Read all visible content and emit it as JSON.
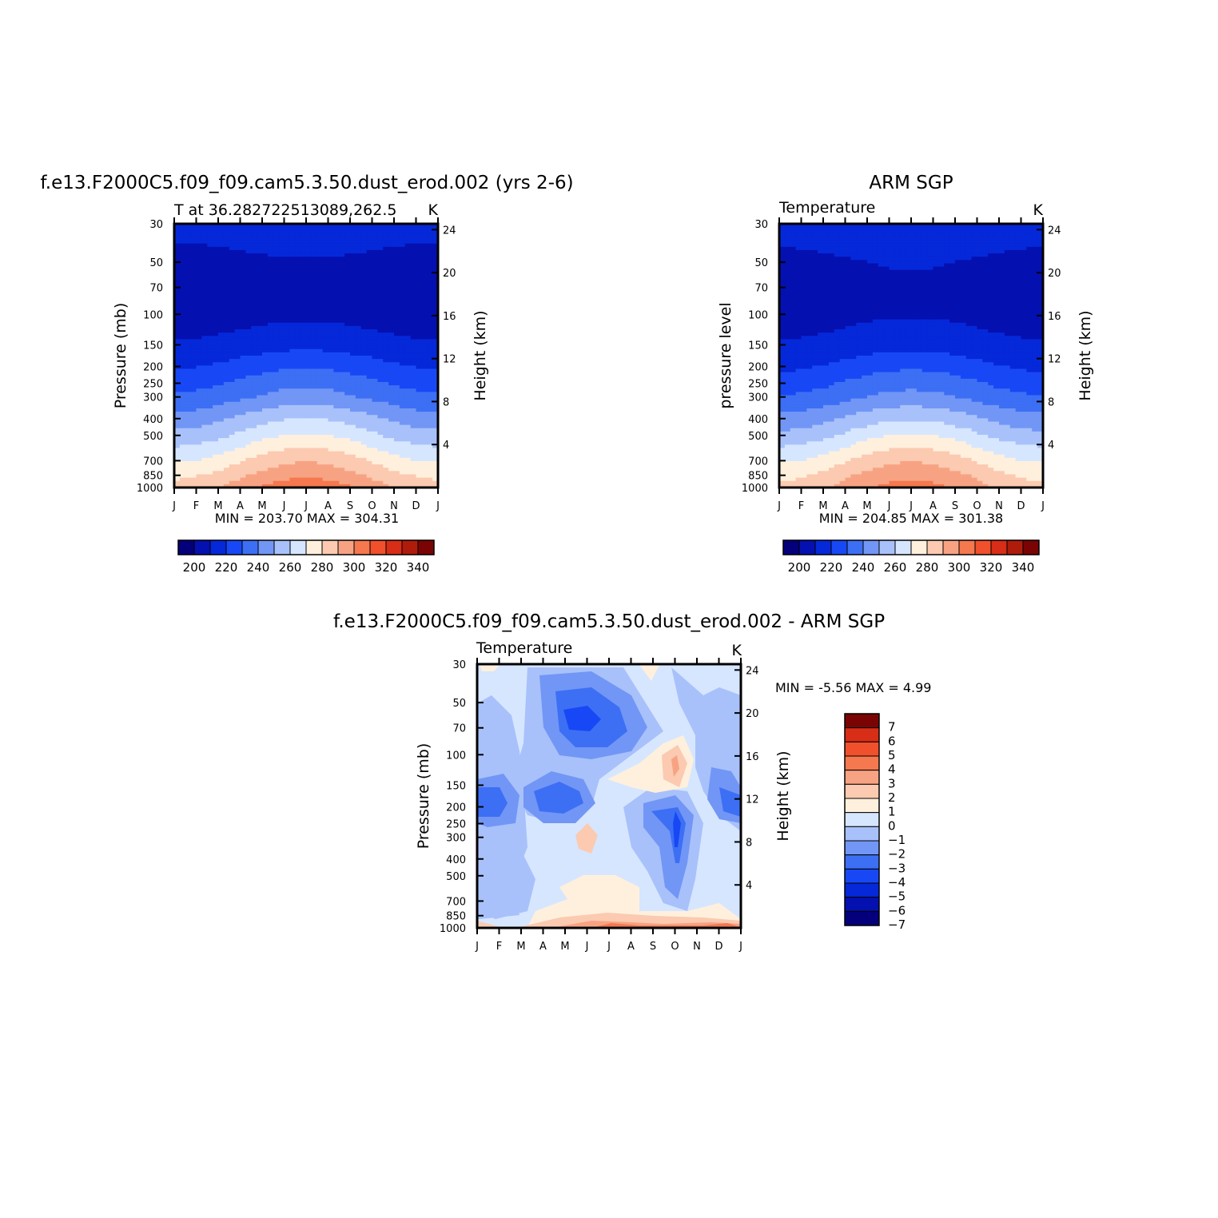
{
  "chart_data": [
    {
      "type": "heatmap",
      "title": "f.e13.F2000C5.f09_f09.cam5.3.50.dust_erod.002 (yrs 2-6)",
      "subtitle_left": "T at 36.282722513089,262.5",
      "subtitle_right": "K",
      "ylabel": "Pressure (mb)",
      "ylabel_right": "Height (km)",
      "months": [
        "J",
        "F",
        "M",
        "A",
        "M",
        "J",
        "J",
        "A",
        "S",
        "O",
        "N",
        "D",
        "J"
      ],
      "pressure_levels": [
        30,
        50,
        70,
        100,
        150,
        200,
        250,
        300,
        400,
        500,
        700,
        850,
        1000
      ],
      "height_ticks": [
        4,
        8,
        12,
        16,
        20,
        24
      ],
      "minmax_text": "MIN = 203.70 MAX = 304.31",
      "min": 203.7,
      "max": 304.31,
      "colorbar_ticks": [
        "200",
        "220",
        "240",
        "260",
        "280",
        "300",
        "320",
        "340"
      ],
      "level_temps": [
        217,
        207,
        204,
        206,
        214,
        224,
        232,
        238,
        252,
        262,
        279,
        288,
        295
      ],
      "seasonal_amplitude": [
        2,
        2,
        2,
        2,
        3,
        5,
        6,
        6,
        8,
        9,
        10,
        10,
        11
      ]
    },
    {
      "type": "heatmap",
      "title": "ARM SGP",
      "subtitle_left": "Temperature",
      "subtitle_right": "K",
      "ylabel": "pressure level",
      "ylabel_right": "Height (km)",
      "months": [
        "J",
        "F",
        "M",
        "A",
        "M",
        "J",
        "J",
        "A",
        "S",
        "O",
        "N",
        "D",
        "J"
      ],
      "pressure_levels": [
        30,
        50,
        70,
        100,
        150,
        200,
        250,
        300,
        400,
        500,
        700,
        850,
        1000
      ],
      "height_ticks": [
        4,
        8,
        12,
        16,
        20,
        24
      ],
      "minmax_text": "MIN = 204.85 MAX = 301.38",
      "min": 204.85,
      "max": 301.38,
      "colorbar_ticks": [
        "200",
        "220",
        "240",
        "260",
        "280",
        "300",
        "320",
        "340"
      ],
      "level_temps": [
        217,
        209,
        206,
        207,
        214,
        223,
        231,
        237,
        251,
        262,
        279,
        288,
        293
      ],
      "seasonal_amplitude": [
        2,
        2,
        2,
        2,
        3,
        5,
        6,
        6,
        8,
        9,
        10,
        10,
        11
      ]
    },
    {
      "type": "heatmap",
      "title": "f.e13.F2000C5.f09_f09.cam5.3.50.dust_erod.002 - ARM SGP",
      "subtitle_left": "Temperature",
      "subtitle_right": "K",
      "ylabel": "Pressure (mb)",
      "ylabel_right": "Height (km)",
      "months": [
        "J",
        "F",
        "M",
        "A",
        "M",
        "J",
        "J",
        "A",
        "S",
        "O",
        "N",
        "D",
        "J"
      ],
      "pressure_levels": [
        30,
        50,
        70,
        100,
        150,
        200,
        250,
        300,
        400,
        500,
        700,
        850,
        1000
      ],
      "height_ticks": [
        4,
        8,
        12,
        16,
        20,
        24
      ],
      "minmax_text": "MIN = -5.56 MAX = 4.99",
      "min": -5.56,
      "max": 4.99,
      "colorbar_ticks": [
        "7",
        "6",
        "5",
        "4",
        "3",
        "2",
        "1",
        "0",
        "-1",
        "-2",
        "-3",
        "-4",
        "-5",
        "-6",
        "-7"
      ]
    }
  ],
  "colors": {
    "temp_palette": [
      "#04007b",
      "#0510b0",
      "#0528d9",
      "#1848f5",
      "#3d6ff5",
      "#7296f5",
      "#a8c1fa",
      "#d6e6ff",
      "#fff0dd",
      "#fbcab0",
      "#f7a383",
      "#f5784f",
      "#f0502c",
      "#d82d16",
      "#b01c0b",
      "#7a0403"
    ],
    "diff_palette": [
      "#04007b",
      "#0510b0",
      "#0528d9",
      "#1848f5",
      "#3d6ff5",
      "#7296f5",
      "#a8c1fa",
      "#d6e6ff",
      "#fff0dd",
      "#fbcab0",
      "#f7a383",
      "#f5784f",
      "#f0502c",
      "#d82d16",
      "#7a0403"
    ]
  }
}
